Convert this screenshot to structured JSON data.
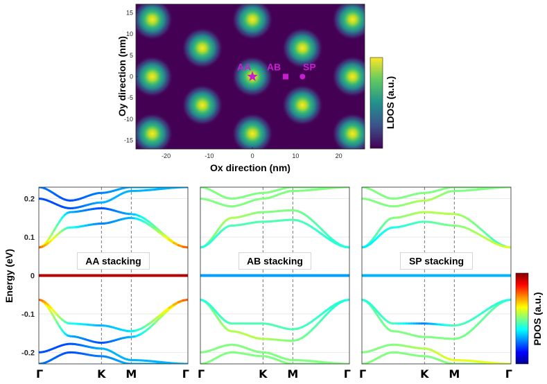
{
  "chart_data": [
    {
      "type": "heatmap",
      "title": "",
      "xlabel": "Ox direction (nm)",
      "ylabel": "Oy direction (nm)",
      "colorbar_label": "LDOS (a.u.)",
      "colormap": "viridis",
      "xlim": [
        -27,
        26
      ],
      "ylim": [
        -17,
        17
      ],
      "xticks": [
        -20,
        -10,
        0,
        10,
        20
      ],
      "yticks": [
        15,
        10,
        5,
        0,
        -5,
        -10,
        -15
      ],
      "xtick_labels": [
        "-20",
        "-10",
        "0",
        "10",
        "20"
      ],
      "ytick_labels": [
        "15",
        "10",
        "5",
        "0",
        "-5",
        "-10",
        "-15"
      ],
      "lattice_period_nm": 23.2,
      "bright_spots": [
        [
          -23.2,
          13.4
        ],
        [
          0,
          13.4
        ],
        [
          23.2,
          13.4
        ],
        [
          -11.6,
          6.7
        ],
        [
          11.6,
          6.7
        ],
        [
          -23.2,
          0
        ],
        [
          0,
          0
        ],
        [
          23.2,
          0
        ],
        [
          -11.6,
          -6.7
        ],
        [
          11.6,
          -6.7
        ],
        [
          -23.2,
          -13.4
        ],
        [
          0,
          -13.4
        ],
        [
          23.2,
          -13.4
        ]
      ],
      "markers": [
        {
          "label": "AA",
          "shape": "star",
          "x": 0,
          "y": 0
        },
        {
          "label": "AB",
          "shape": "square",
          "x": 7.7,
          "y": 0
        },
        {
          "label": "SP",
          "shape": "circle",
          "x": 11.6,
          "y": 0
        }
      ],
      "marker_color": "#c81ecf"
    },
    {
      "type": "line",
      "ylabel": "Energy (eV)",
      "ylim": [
        -0.23,
        0.23
      ],
      "yticks": [
        0.2,
        0.1,
        0,
        -0.1,
        -0.2
      ],
      "ytick_labels": [
        "0.2",
        "0.1",
        "0",
        "-0.1",
        "-0.2"
      ],
      "kpath_labels": [
        "Γ",
        "K",
        "M",
        "Γ"
      ],
      "kpath_positions": [
        0,
        0.42,
        0.62,
        1.0
      ],
      "colorbar_label": "PDOS (a.u.)",
      "colormap": "jet",
      "panels": [
        {
          "label": "AA stacking",
          "flat_band_energy": 0,
          "flat_band_pdos": 0.95,
          "bands": [
            {
              "energy": [
                0.073,
                0.165,
                0.175,
                0.16,
                0.073
              ],
              "pdos": [
                0.7,
                0.3,
                0.2,
                0.3,
                0.7
              ]
            },
            {
              "energy": [
                0.073,
                0.125,
                0.135,
                0.15,
                0.073
              ],
              "pdos": [
                0.8,
                0.4,
                0.25,
                0.3,
                0.8
              ]
            },
            {
              "energy": [
                0.23,
                0.195,
                0.215,
                0.23,
                0.23
              ],
              "pdos": [
                0.25,
                0.2,
                0.25,
                0.3,
                0.3
              ]
            },
            {
              "energy": [
                0.2,
                0.175,
                0.19,
                0.22,
                0.23
              ],
              "pdos": [
                0.2,
                0.2,
                0.3,
                0.3,
                0.3
              ]
            },
            {
              "energy": [
                -0.063,
                -0.158,
                -0.175,
                -0.16,
                -0.063
              ],
              "pdos": [
                0.75,
                0.3,
                0.2,
                0.3,
                0.75
              ]
            },
            {
              "energy": [
                -0.063,
                -0.125,
                -0.13,
                -0.145,
                -0.063
              ],
              "pdos": [
                0.8,
                0.4,
                0.3,
                0.35,
                0.8
              ]
            },
            {
              "energy": [
                -0.23,
                -0.2,
                -0.21,
                -0.23,
                -0.23
              ],
              "pdos": [
                0.25,
                0.2,
                0.25,
                0.3,
                0.3
              ]
            },
            {
              "energy": [
                -0.2,
                -0.178,
                -0.19,
                -0.22,
                -0.23
              ],
              "pdos": [
                0.2,
                0.2,
                0.3,
                0.3,
                0.3
              ]
            }
          ]
        },
        {
          "label": "AB stacking",
          "flat_band_energy": 0,
          "flat_band_pdos": 0.28,
          "bands": [
            {
              "energy": [
                0.073,
                0.15,
                0.165,
                0.17,
                0.073
              ],
              "pdos": [
                0.45,
                0.55,
                0.5,
                0.5,
                0.4
              ]
            },
            {
              "energy": [
                0.073,
                0.13,
                0.14,
                0.145,
                0.073
              ],
              "pdos": [
                0.4,
                0.45,
                0.45,
                0.45,
                0.4
              ]
            },
            {
              "energy": [
                0.23,
                0.2,
                0.215,
                0.23,
                0.23
              ],
              "pdos": [
                0.5,
                0.5,
                0.5,
                0.5,
                0.5
              ]
            },
            {
              "energy": [
                0.2,
                0.18,
                0.2,
                0.22,
                0.23
              ],
              "pdos": [
                0.5,
                0.5,
                0.5,
                0.5,
                0.5
              ]
            },
            {
              "energy": [
                -0.063,
                -0.145,
                -0.165,
                -0.17,
                -0.063
              ],
              "pdos": [
                0.45,
                0.55,
                0.55,
                0.5,
                0.4
              ]
            },
            {
              "energy": [
                -0.063,
                -0.125,
                -0.125,
                -0.14,
                -0.063
              ],
              "pdos": [
                0.4,
                0.45,
                0.45,
                0.45,
                0.4
              ]
            },
            {
              "energy": [
                -0.23,
                -0.2,
                -0.21,
                -0.23,
                -0.23
              ],
              "pdos": [
                0.5,
                0.5,
                0.5,
                0.5,
                0.5
              ]
            },
            {
              "energy": [
                -0.2,
                -0.18,
                -0.2,
                -0.22,
                -0.23
              ],
              "pdos": [
                0.5,
                0.5,
                0.5,
                0.5,
                0.5
              ]
            }
          ]
        },
        {
          "label": "SP stacking",
          "flat_band_energy": 0,
          "flat_band_pdos": 0.3,
          "bands": [
            {
              "energy": [
                0.073,
                0.15,
                0.165,
                0.16,
                0.073
              ],
              "pdos": [
                0.4,
                0.5,
                0.55,
                0.55,
                0.4
              ]
            },
            {
              "energy": [
                0.073,
                0.125,
                0.14,
                0.13,
                0.073
              ],
              "pdos": [
                0.35,
                0.4,
                0.45,
                0.5,
                0.6
              ]
            },
            {
              "energy": [
                0.23,
                0.2,
                0.215,
                0.23,
                0.23
              ],
              "pdos": [
                0.5,
                0.5,
                0.5,
                0.5,
                0.5
              ]
            },
            {
              "energy": [
                0.2,
                0.18,
                0.195,
                0.22,
                0.23
              ],
              "pdos": [
                0.5,
                0.5,
                0.55,
                0.5,
                0.5
              ]
            },
            {
              "energy": [
                -0.063,
                -0.145,
                -0.16,
                -0.165,
                -0.063
              ],
              "pdos": [
                0.45,
                0.5,
                0.5,
                0.5,
                0.45
              ]
            },
            {
              "energy": [
                -0.063,
                -0.125,
                -0.125,
                -0.13,
                -0.063
              ],
              "pdos": [
                0.4,
                0.45,
                0.25,
                0.45,
                0.4
              ]
            },
            {
              "energy": [
                -0.23,
                -0.2,
                -0.21,
                -0.23,
                -0.23
              ],
              "pdos": [
                0.5,
                0.5,
                0.5,
                0.5,
                0.5
              ]
            },
            {
              "energy": [
                -0.2,
                -0.18,
                -0.19,
                -0.22,
                -0.23
              ],
              "pdos": [
                0.5,
                0.5,
                0.55,
                0.6,
                0.6
              ]
            }
          ]
        }
      ]
    }
  ]
}
